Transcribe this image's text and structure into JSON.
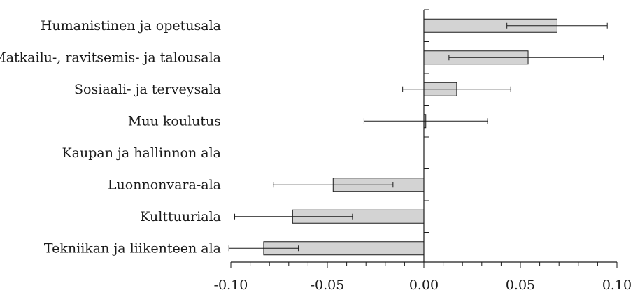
{
  "chart_data": {
    "type": "bar",
    "orientation": "horizontal",
    "categories": [
      "Humanistinen ja opetusala",
      "Matkailu-, ravitsemis- ja talousala",
      "Sosiaali- ja terveysala",
      "Muu koulutus",
      "Kaupan ja hallinnon ala",
      "Luonnonvara-ala",
      "Kulttuuriala",
      "Tekniikan ja liikenteen ala"
    ],
    "series": [
      {
        "values": [
          0.069,
          0.054,
          0.017,
          0.001,
          0.0,
          -0.047,
          -0.068,
          -0.083
        ],
        "ci_low": [
          0.043,
          0.013,
          -0.011,
          -0.031,
          null,
          -0.078,
          -0.098,
          -0.101
        ],
        "ci_high": [
          0.095,
          0.093,
          0.045,
          0.033,
          null,
          -0.016,
          -0.037,
          -0.065
        ]
      }
    ],
    "title": "",
    "xlabel": "",
    "ylabel": "",
    "xlim": [
      -0.1,
      0.1
    ],
    "xticks": [
      -0.1,
      -0.05,
      0.0,
      0.05,
      0.1
    ],
    "xtick_labels": [
      "-0.10",
      "-0.05",
      "0.00",
      "0.05",
      "0.10"
    ],
    "grid": false,
    "colors": {
      "bar_fill": "#d3d3d3",
      "stroke": "#1a1a1a"
    }
  }
}
